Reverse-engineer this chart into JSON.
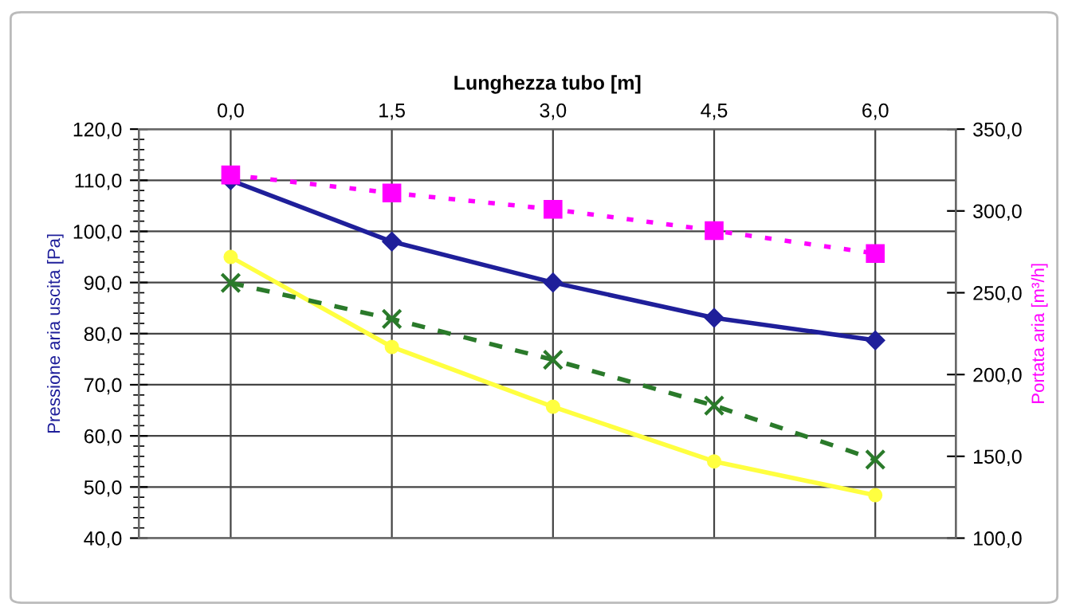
{
  "chart_data": {
    "type": "line",
    "xlabel": "Lunghezza tubo [m]",
    "ylabel": "Pressione aria uscita [Pa]",
    "y2label": "Portata aria [m³/h]",
    "categories": [
      "0,0",
      "1,5",
      "3,0",
      "4,5",
      "6,0"
    ],
    "ylim": [
      40,
      120
    ],
    "yticks": [
      {
        "value": 40,
        "label": "40,0"
      },
      {
        "value": 50,
        "label": "50,0"
      },
      {
        "value": 60,
        "label": "60,0"
      },
      {
        "value": 70,
        "label": "70,0"
      },
      {
        "value": 80,
        "label": "80,0"
      },
      {
        "value": 90,
        "label": "90,0"
      },
      {
        "value": 100,
        "label": "100,0"
      },
      {
        "value": 110,
        "label": "110,0"
      },
      {
        "value": 120,
        "label": "120,0"
      }
    ],
    "y2lim": [
      100,
      350
    ],
    "y2ticks": [
      {
        "value": 100,
        "label": "100,0"
      },
      {
        "value": 150,
        "label": "150,0"
      },
      {
        "value": 200,
        "label": "200,0"
      },
      {
        "value": 250,
        "label": "250,0"
      },
      {
        "value": 300,
        "label": "300,0"
      },
      {
        "value": 350,
        "label": "350,0"
      }
    ],
    "grid": true,
    "legend": false,
    "series": [
      {
        "color": "#1f1f9a",
        "values": [
          110.0,
          98.0,
          90.0,
          83.1,
          78.7
        ],
        "marker": "diamond",
        "line_style": "solid"
      },
      {
        "color": "#ff00ff",
        "values": [
          322,
          311,
          301,
          288,
          274
        ],
        "axis": "y2",
        "marker": "square",
        "line_style": "dotted"
      },
      {
        "color": "#ffff40",
        "values": [
          95.0,
          77.4,
          65.7,
          55.0,
          48.4
        ],
        "marker": "circle",
        "line_style": "solid"
      },
      {
        "color": "#2a7a2a",
        "values": [
          256,
          234,
          209,
          181,
          148
        ],
        "axis": "y2",
        "marker": "cross",
        "line_style": "dashed"
      }
    ]
  }
}
